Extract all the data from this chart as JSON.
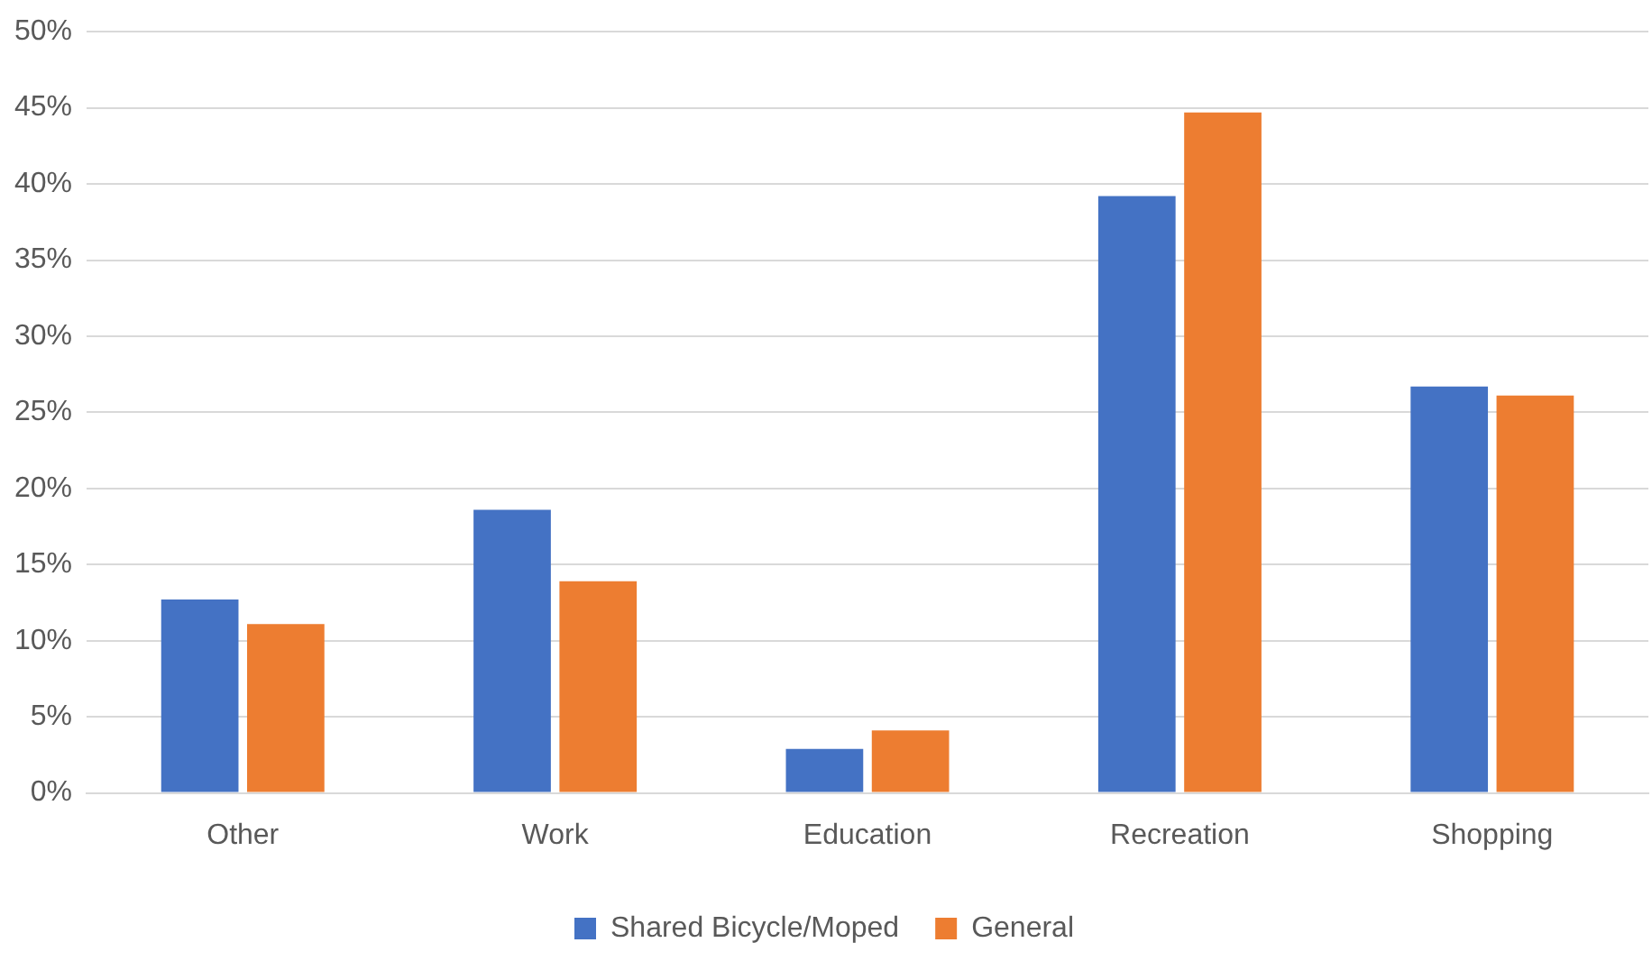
{
  "chart_data": {
    "type": "bar",
    "categories": [
      "Other",
      "Work",
      "Education",
      "Recreation",
      "Shopping"
    ],
    "series": [
      {
        "name": "Shared Bicycle/Moped",
        "color": "#4472c4",
        "values": [
          12.7,
          18.6,
          2.9,
          39.2,
          26.7
        ]
      },
      {
        "name": "General",
        "color": "#ed7d31",
        "values": [
          11.1,
          13.9,
          4.1,
          44.7,
          26.1
        ]
      }
    ],
    "ylim": [
      0,
      50
    ],
    "yticks": [
      {
        "value": 0,
        "label": "0%"
      },
      {
        "value": 5,
        "label": "5%"
      },
      {
        "value": 10,
        "label": "10%"
      },
      {
        "value": 15,
        "label": "15%"
      },
      {
        "value": 20,
        "label": "20%"
      },
      {
        "value": 25,
        "label": "25%"
      },
      {
        "value": 30,
        "label": "30%"
      },
      {
        "value": 35,
        "label": "35%"
      },
      {
        "value": 40,
        "label": "40%"
      },
      {
        "value": 45,
        "label": "45%"
      },
      {
        "value": 50,
        "label": "50%"
      }
    ],
    "grid": "y",
    "legend": "bottom"
  }
}
